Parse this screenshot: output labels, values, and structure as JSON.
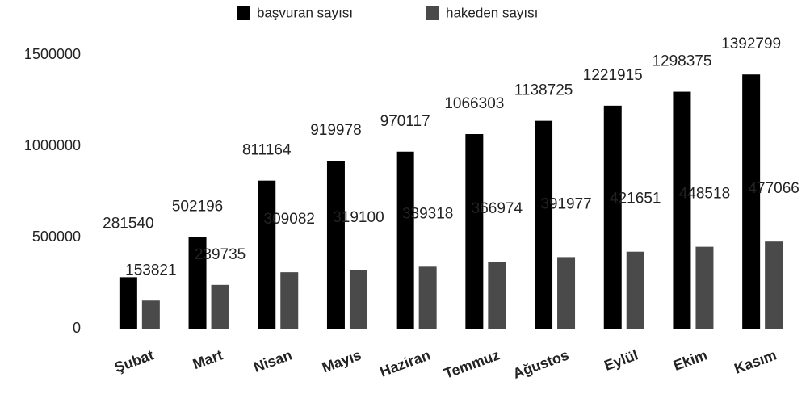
{
  "chart_data": {
    "type": "bar",
    "categories": [
      "Şubat",
      "Mart",
      "Nisan",
      "Mayıs",
      "Haziran",
      "Temmuz",
      "Ağustos",
      "Eylül",
      "Ekim",
      "Kasım"
    ],
    "series": [
      {
        "name": "başvuran sayısı",
        "color": "#000000",
        "values": [
          281540,
          502196,
          811164,
          919978,
          970117,
          1066303,
          1138725,
          1221915,
          1298375,
          1392799
        ]
      },
      {
        "name": "hakeden sayısı",
        "color": "#4a4a4a",
        "values": [
          153821,
          239735,
          309082,
          319100,
          339318,
          366974,
          391977,
          421651,
          448518,
          477066
        ]
      }
    ],
    "ylim": [
      0,
      1500000
    ],
    "yticks": [
      0,
      500000,
      1000000,
      1500000
    ],
    "grid": false,
    "legend": "top"
  }
}
